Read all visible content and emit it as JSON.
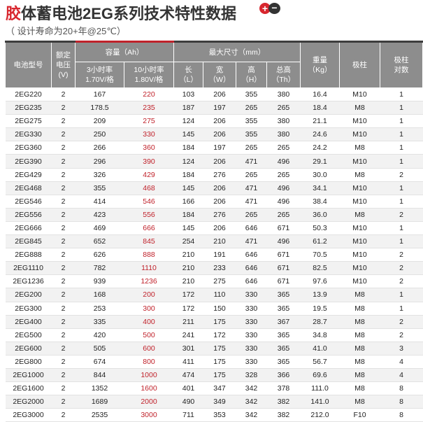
{
  "title": {
    "first_char": "胶",
    "rest": "体蓄电池2EG系列技术特性数据",
    "plus": "+",
    "minus": "−"
  },
  "subtitle": "（ 设计寿命为20+年@25℃）",
  "headers": {
    "model": "电池型号",
    "voltage": "额定\n电压\n(V)",
    "capacity": "容量（Ah）",
    "cap3": "3小时率\n1.70V/格",
    "cap10": "10小时率\n1.80V/格",
    "dims": "最大尺寸（mm）",
    "length": "长\n（L）",
    "width": "宽\n（W）",
    "height": "高\n（H）",
    "total_height": "总高\n（Th）",
    "weight": "重量\n（Kg）",
    "terminal": "极柱",
    "pairs": "极柱\n对数"
  },
  "rows": [
    [
      "2EG220",
      "2",
      "167",
      "220",
      "103",
      "206",
      "355",
      "380",
      "16.4",
      "M10",
      "1"
    ],
    [
      "2EG235",
      "2",
      "178.5",
      "235",
      "187",
      "197",
      "265",
      "265",
      "18.4",
      "M8",
      "1"
    ],
    [
      "2EG275",
      "2",
      "209",
      "275",
      "124",
      "206",
      "355",
      "380",
      "21.1",
      "M10",
      "1"
    ],
    [
      "2EG330",
      "2",
      "250",
      "330",
      "145",
      "206",
      "355",
      "380",
      "24.6",
      "M10",
      "1"
    ],
    [
      "2EG360",
      "2",
      "266",
      "360",
      "184",
      "197",
      "265",
      "265",
      "24.2",
      "M8",
      "1"
    ],
    [
      "2EG390",
      "2",
      "296",
      "390",
      "124",
      "206",
      "471",
      "496",
      "29.1",
      "M10",
      "1"
    ],
    [
      "2EG429",
      "2",
      "326",
      "429",
      "184",
      "276",
      "265",
      "265",
      "30.0",
      "M8",
      "2"
    ],
    [
      "2EG468",
      "2",
      "355",
      "468",
      "145",
      "206",
      "471",
      "496",
      "34.1",
      "M10",
      "1"
    ],
    [
      "2EG546",
      "2",
      "414",
      "546",
      "166",
      "206",
      "471",
      "496",
      "38.4",
      "M10",
      "1"
    ],
    [
      "2EG556",
      "2",
      "423",
      "556",
      "184",
      "276",
      "265",
      "265",
      "36.0",
      "M8",
      "2"
    ],
    [
      "2EG666",
      "2",
      "469",
      "666",
      "145",
      "206",
      "646",
      "671",
      "50.3",
      "M10",
      "1"
    ],
    [
      "2EG845",
      "2",
      "652",
      "845",
      "254",
      "210",
      "471",
      "496",
      "61.2",
      "M10",
      "1"
    ],
    [
      "2EG888",
      "2",
      "626",
      "888",
      "210",
      "191",
      "646",
      "671",
      "70.5",
      "M10",
      "2"
    ],
    [
      "2EG1110",
      "2",
      "782",
      "1110",
      "210",
      "233",
      "646",
      "671",
      "82.5",
      "M10",
      "2"
    ],
    [
      "2EG1236",
      "2",
      "939",
      "1236",
      "210",
      "275",
      "646",
      "671",
      "97.6",
      "M10",
      "2"
    ],
    [
      "2EG200",
      "2",
      "168",
      "200",
      "172",
      "110",
      "330",
      "365",
      "13.9",
      "M8",
      "1"
    ],
    [
      "2EG300",
      "2",
      "253",
      "300",
      "172",
      "150",
      "330",
      "365",
      "19.5",
      "M8",
      "1"
    ],
    [
      "2EG400",
      "2",
      "335",
      "400",
      "211",
      "175",
      "330",
      "367",
      "28.7",
      "M8",
      "2"
    ],
    [
      "2EG500",
      "2",
      "420",
      "500",
      "241",
      "172",
      "330",
      "365",
      "34.8",
      "M8",
      "2"
    ],
    [
      "2EG600",
      "2",
      "505",
      "600",
      "301",
      "175",
      "330",
      "365",
      "41.0",
      "M8",
      "3"
    ],
    [
      "2EG800",
      "2",
      "674",
      "800",
      "411",
      "175",
      "330",
      "365",
      "56.7",
      "M8",
      "4"
    ],
    [
      "2EG1000",
      "2",
      "844",
      "1000",
      "474",
      "175",
      "328",
      "366",
      "69.6",
      "M8",
      "4"
    ],
    [
      "2EG1600",
      "2",
      "1352",
      "1600",
      "401",
      "347",
      "342",
      "378",
      "111.0",
      "M8",
      "8"
    ],
    [
      "2EG2000",
      "2",
      "1689",
      "2000",
      "490",
      "349",
      "342",
      "382",
      "141.0",
      "M8",
      "8"
    ],
    [
      "2EG3000",
      "2",
      "2535",
      "3000",
      "711",
      "353",
      "342",
      "382",
      "212.0",
      "F10",
      "8"
    ]
  ]
}
